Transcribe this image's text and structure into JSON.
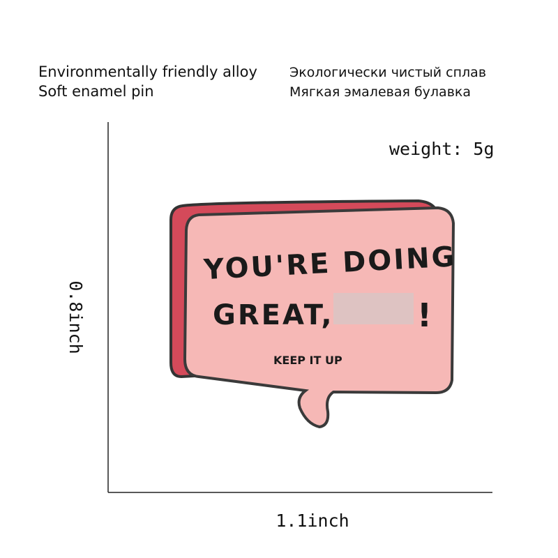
{
  "header": {
    "features_en": [
      "Environmentally friendly alloy",
      "Soft enamel pin"
    ],
    "features_ru": [
      "Экологически чистый сплав",
      "Мягкая эмалевая булавка"
    ]
  },
  "weight": "weight: 5g",
  "dimensions": {
    "height": "0.8inch",
    "width": "1.1inch"
  },
  "pin": {
    "lines": [
      "YOU'RE DOING",
      "GREAT,"
    ],
    "exclamation": "!",
    "tagline": "KEEP IT UP"
  }
}
